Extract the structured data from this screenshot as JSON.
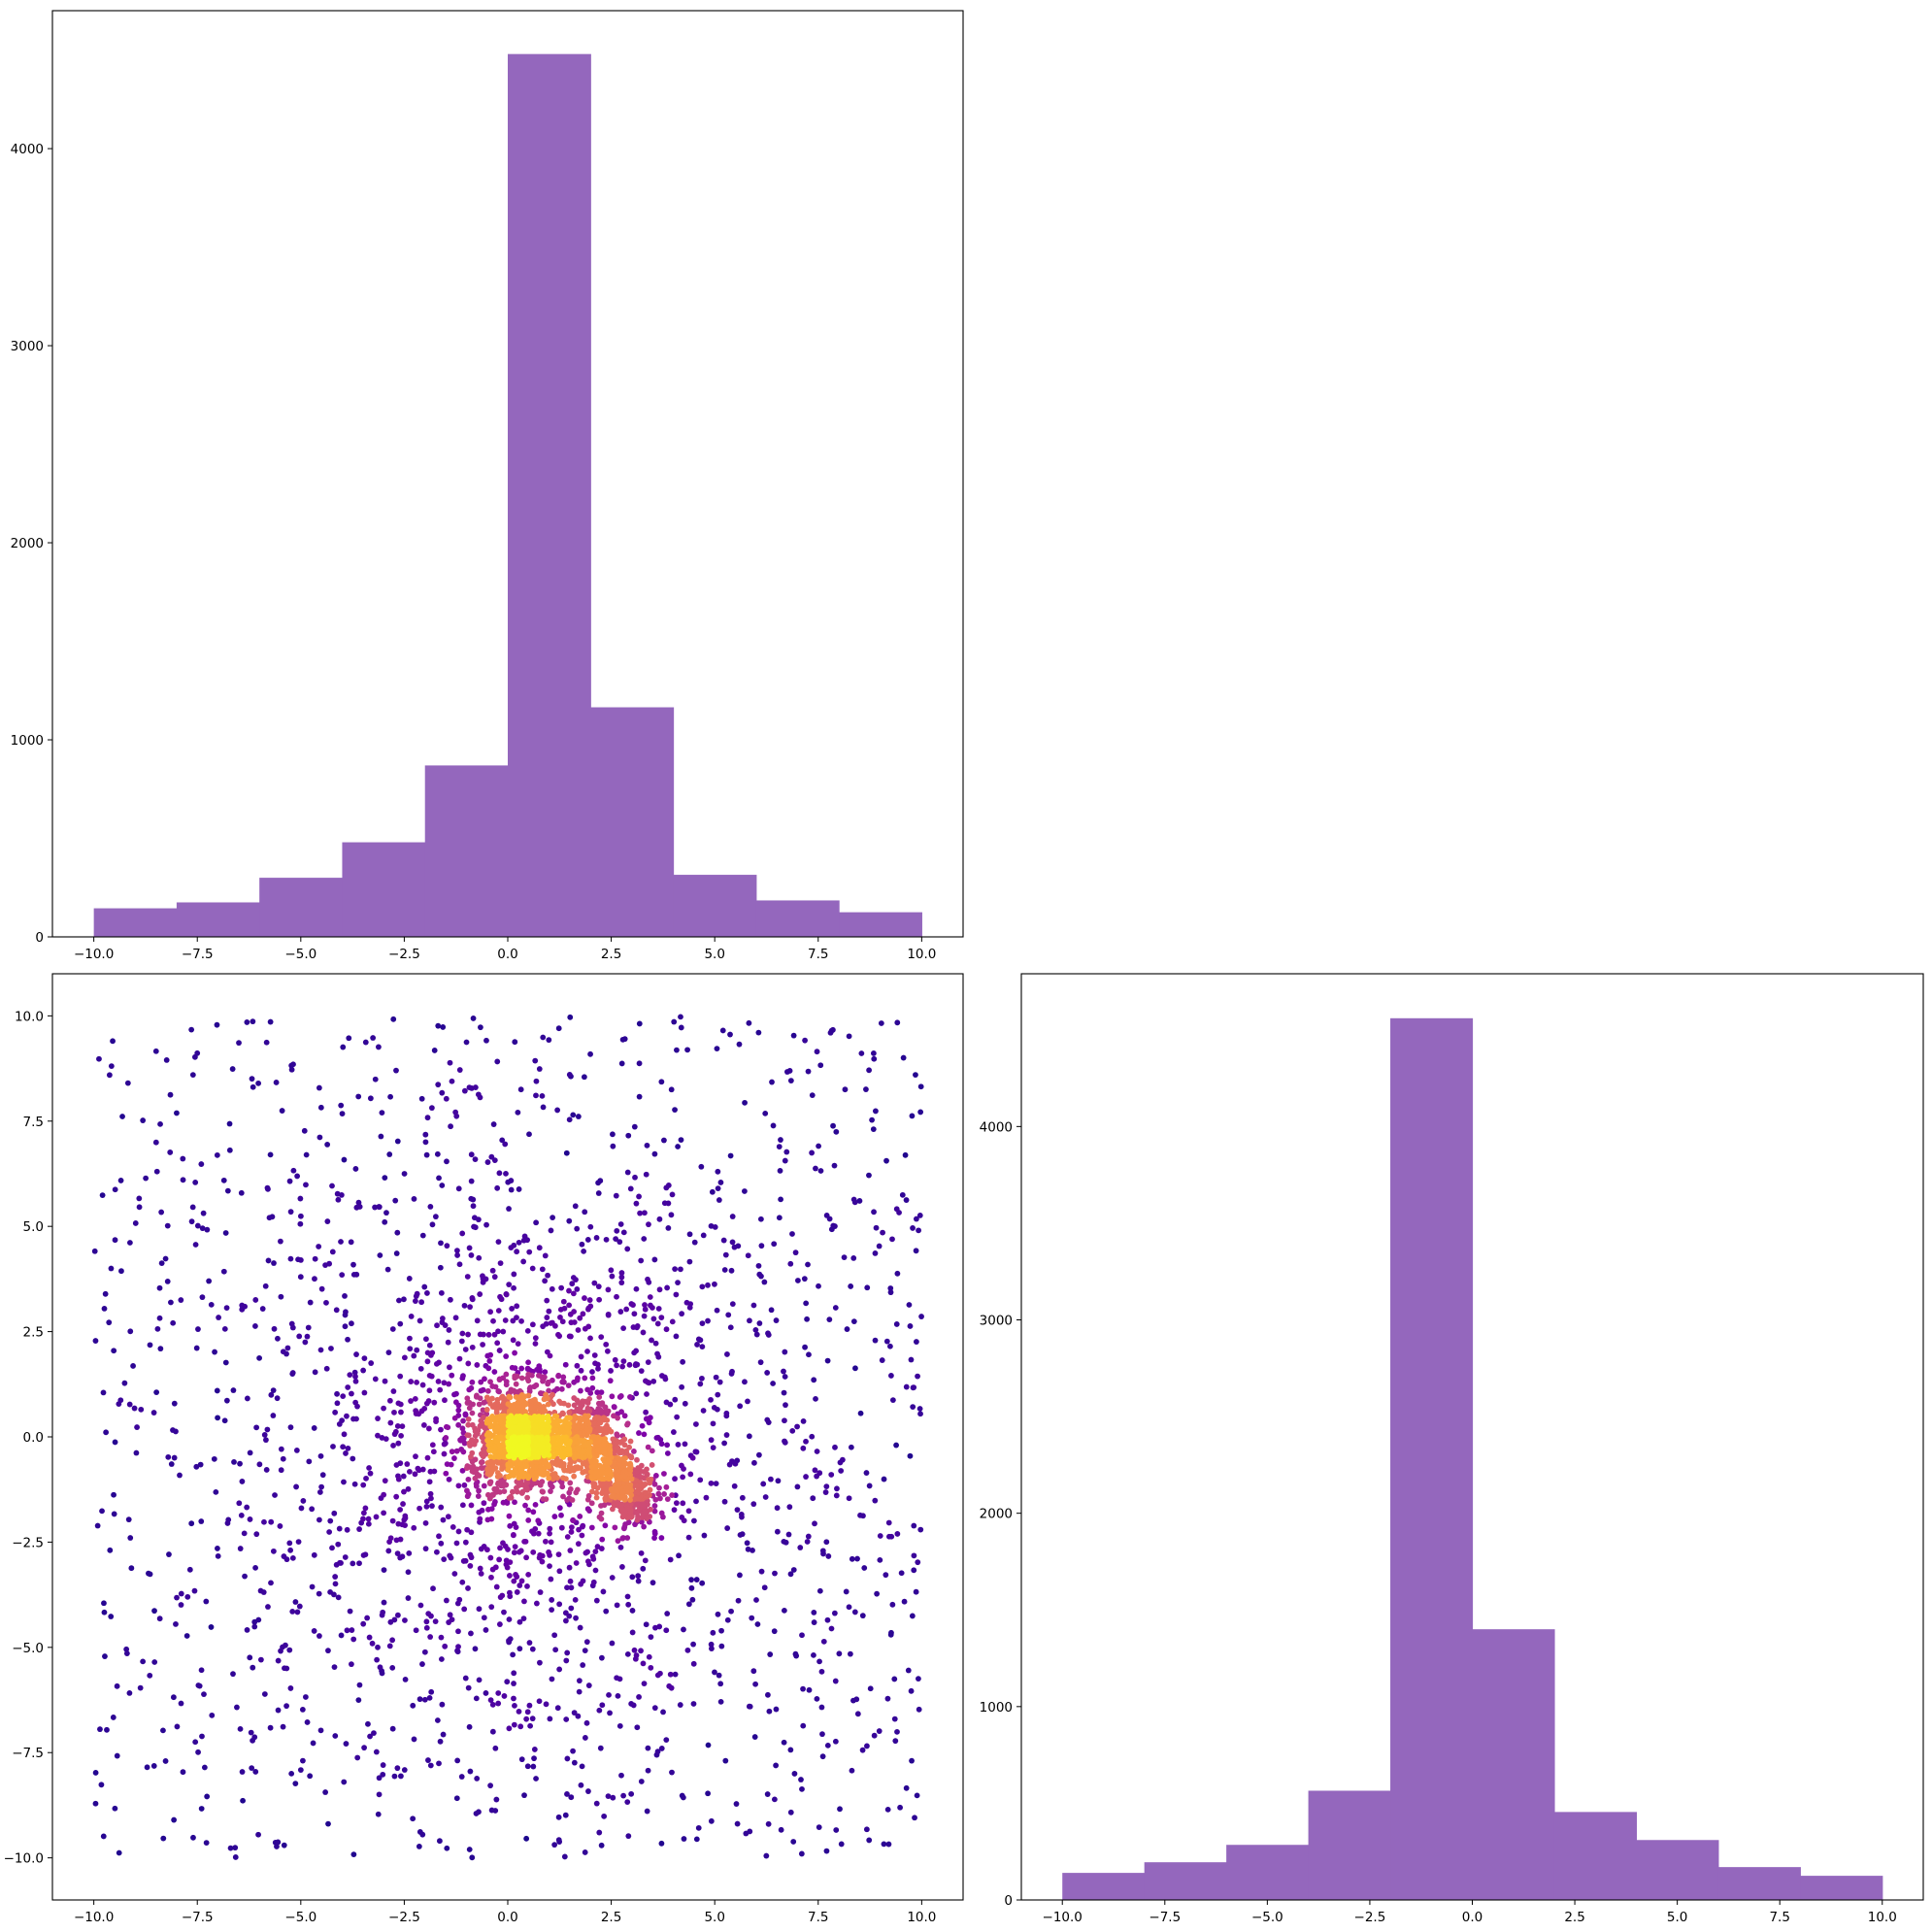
{
  "chart_data": [
    {
      "panel": "top-left",
      "type": "bar",
      "subtype": "histogram",
      "title": "",
      "xlabel": "",
      "ylabel": "",
      "bin_edges": [
        -10,
        -8,
        -6,
        -4,
        -2,
        0,
        2,
        4,
        6,
        8,
        10
      ],
      "values": [
        145,
        175,
        300,
        480,
        870,
        4480,
        1165,
        315,
        185,
        125
      ],
      "xlim": [
        -11,
        11
      ],
      "ylim": [
        0,
        4700
      ],
      "xticks": [
        -10.0,
        -7.5,
        -5.0,
        -2.5,
        0.0,
        2.5,
        5.0,
        7.5,
        10.0
      ],
      "xtick_labels": [
        "−10.0",
        "−7.5",
        "−5.0",
        "−2.5",
        "0.0",
        "2.5",
        "5.0",
        "7.5",
        "10.0"
      ],
      "yticks": [
        0,
        1000,
        2000,
        3000,
        4000
      ],
      "ytick_labels": [
        "0",
        "1000",
        "2000",
        "3000",
        "4000"
      ],
      "color": "#9467bd",
      "grid": false
    },
    {
      "panel": "bottom-left",
      "type": "scatter",
      "title": "",
      "xlabel": "",
      "ylabel": "",
      "colormap": "plasma",
      "color_encodes": "point density (yellow = highest)",
      "description": "About 4000 points: a uniform scatter over [-10,10] x [-10,10], a radial cloud centred near (0.5, 0), a dense bright core near (0.3, -0.1) and a dense elongated cluster from about (1.5, 0.5) to (3.3, -1.8).",
      "xlim": [
        -11,
        11
      ],
      "ylim": [
        -11,
        11
      ],
      "xticks": [
        -10.0,
        -7.5,
        -5.0,
        -2.5,
        0.0,
        2.5,
        5.0,
        7.5,
        10.0
      ],
      "xtick_labels": [
        "−10.0",
        "−7.5",
        "−5.0",
        "−2.5",
        "0.0",
        "2.5",
        "5.0",
        "7.5",
        "10.0"
      ],
      "yticks": [
        -10.0,
        -7.5,
        -5.0,
        -2.5,
        0.0,
        2.5,
        5.0,
        7.5,
        10.0
      ],
      "ytick_labels": [
        "−10.0",
        "−7.5",
        "−5.0",
        "−2.5",
        "0.0",
        "2.5",
        "5.0",
        "7.5",
        "10.0"
      ],
      "components": [
        {
          "kind": "uniform",
          "count": 1100,
          "x": [
            -10,
            10
          ],
          "y": [
            -10,
            10
          ]
        },
        {
          "kind": "radial",
          "count": 1500,
          "center": [
            0.5,
            0.0
          ],
          "spread": 4.2
        },
        {
          "kind": "gaussian",
          "count": 900,
          "center": [
            0.3,
            -0.1
          ],
          "sd": [
            0.55,
            0.55
          ]
        },
        {
          "kind": "band",
          "count": 800,
          "from": [
            1.5,
            0.5
          ],
          "to": [
            3.3,
            -1.8
          ],
          "width": 1.3
        }
      ],
      "grid": false
    },
    {
      "panel": "bottom-right",
      "type": "bar",
      "subtype": "histogram",
      "title": "",
      "xlabel": "",
      "ylabel": "",
      "bin_edges": [
        -10,
        -8,
        -6,
        -4,
        -2,
        0,
        2,
        4,
        6,
        8,
        10
      ],
      "values": [
        140,
        195,
        285,
        565,
        4560,
        1400,
        455,
        310,
        170,
        125
      ],
      "xlim": [
        -11,
        11
      ],
      "ylim": [
        0,
        4790
      ],
      "xticks": [
        -10.0,
        -7.5,
        -5.0,
        -2.5,
        0.0,
        2.5,
        5.0,
        7.5,
        10.0
      ],
      "xtick_labels": [
        "−10.0",
        "−7.5",
        "−5.0",
        "−2.5",
        "0.0",
        "2.5",
        "5.0",
        "7.5",
        "10.0"
      ],
      "yticks": [
        0,
        1000,
        2000,
        3000,
        4000
      ],
      "ytick_labels": [
        "0",
        "1000",
        "2000",
        "3000",
        "4000"
      ],
      "color": "#9467bd",
      "grid": false
    }
  ]
}
